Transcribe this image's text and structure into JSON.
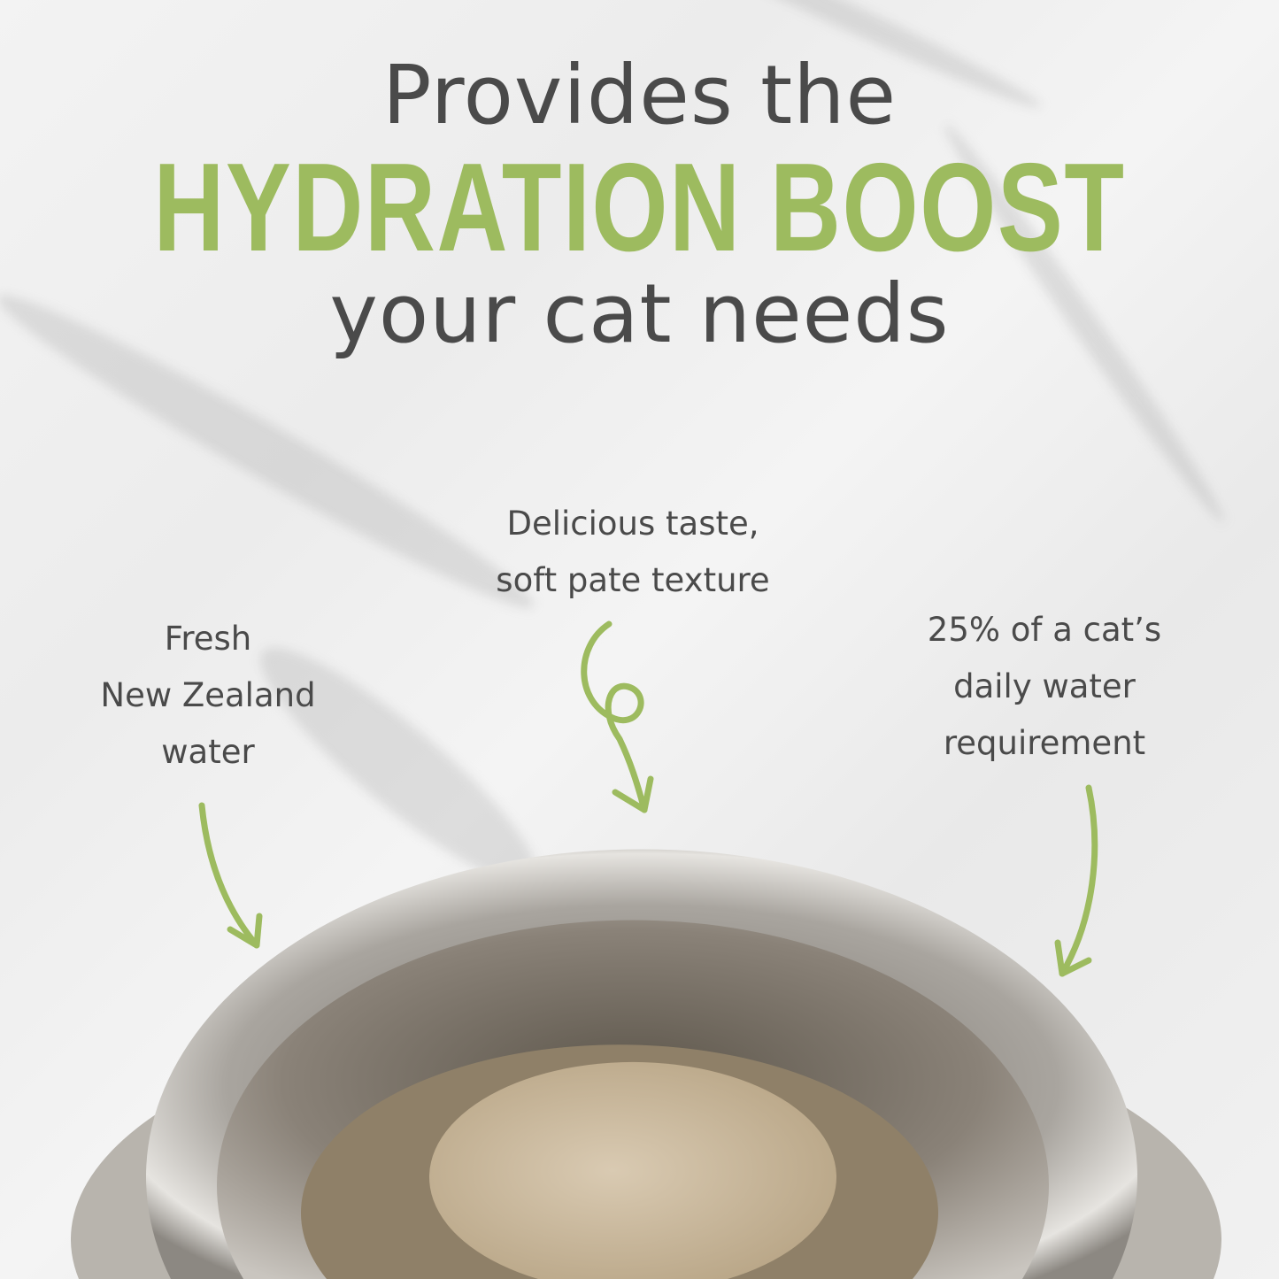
{
  "headline": {
    "line1": "Provides the",
    "line2": "HYDRATION BOOST",
    "line3": "your cat needs"
  },
  "callouts": {
    "left": [
      "Fresh",
      "New Zealand",
      "water"
    ],
    "middle": [
      "Delicious taste,",
      "soft pate texture"
    ],
    "right": [
      "25% of a cat’s",
      "daily water",
      "requirement"
    ]
  },
  "colors": {
    "accent": "#9dbb5f",
    "text": "#4a4a4a"
  },
  "icons": [
    "arrow-left",
    "curly-arrow-middle",
    "arrow-right"
  ]
}
